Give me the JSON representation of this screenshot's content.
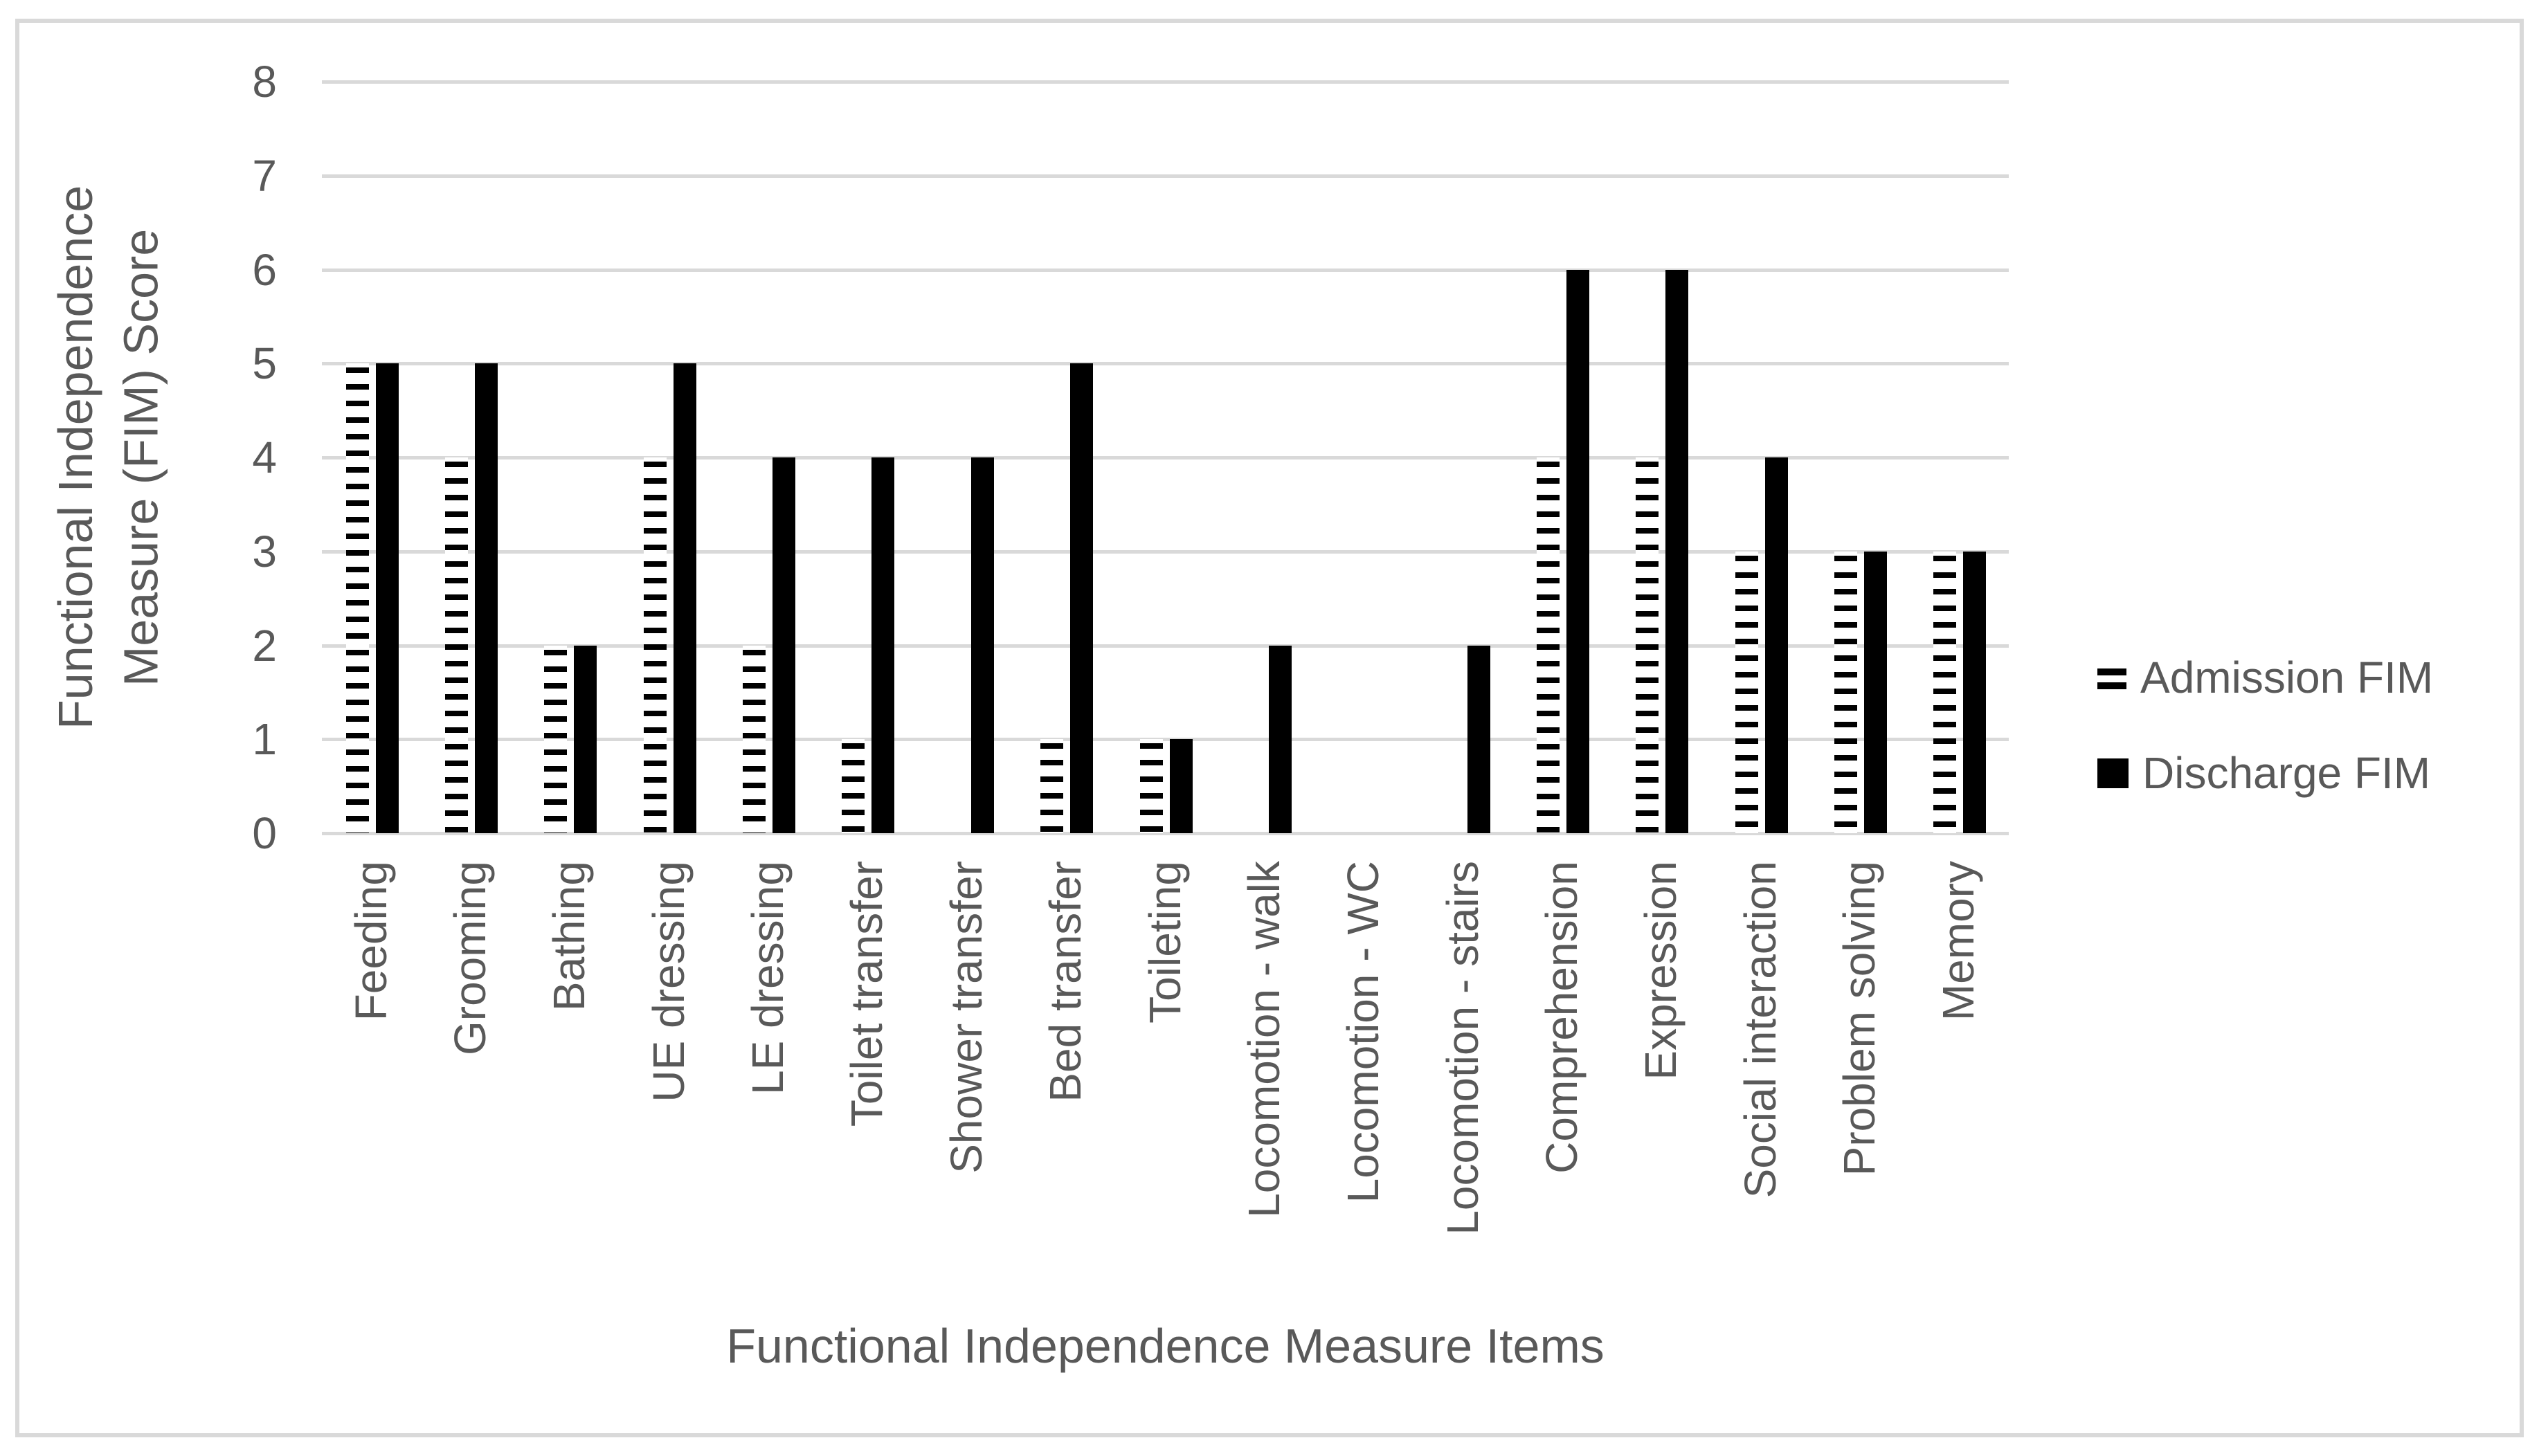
{
  "chart_data": {
    "type": "bar",
    "title": "",
    "xlabel": "Functional Independence Measure Items",
    "ylabel": "Functional Independence Measure (FIM) Score",
    "ylabel_lines": [
      "Functional Independence",
      "Measure (FIM) Score"
    ],
    "categories": [
      "Feeding",
      "Grooming",
      "Bathing",
      "UE dressing",
      "LE dressing",
      "Toilet transfer",
      "Shower transfer",
      "Bed transfer",
      "Toileting",
      "Locomotion - walk",
      "Locomotion - WC",
      "Locomotion - stairs",
      "Comprehension",
      "Expression",
      "Social interaction",
      "Problem solving",
      "Memory"
    ],
    "series": [
      {
        "name": "Admission FIM",
        "style": "dashed-pattern",
        "values": [
          5,
          4,
          2,
          4,
          2,
          1,
          0,
          1,
          1,
          0,
          0,
          0,
          4,
          4,
          3,
          3,
          3
        ]
      },
      {
        "name": "Discharge FIM",
        "style": "solid",
        "values": [
          5,
          5,
          2,
          5,
          4,
          4,
          4,
          5,
          1,
          2,
          0,
          2,
          6,
          6,
          4,
          3,
          3
        ]
      }
    ],
    "ylim": [
      0,
      8
    ],
    "ytick_step": 1,
    "yticks": [
      "0",
      "1",
      "2",
      "3",
      "4",
      "5",
      "6",
      "7",
      "8"
    ],
    "grid": true,
    "legend_position": "right"
  },
  "colors": {
    "bar_fill": "#000000",
    "text": "#595959",
    "gridline": "#d9d9d9",
    "frame_border": "#d9d9d9",
    "background": "#ffffff"
  }
}
